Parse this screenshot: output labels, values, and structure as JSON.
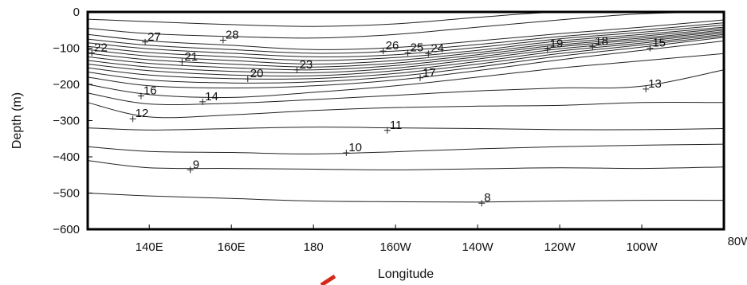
{
  "chart_data": {
    "type": "line",
    "chart_kind": "contour",
    "title": "",
    "xlabel": "Longitude",
    "ylabel": "Depth (m)",
    "xlim": [
      125,
      280
    ],
    "ylim": [
      -600,
      0
    ],
    "x_ticks": [
      {
        "value": 140,
        "label": "140E"
      },
      {
        "value": 160,
        "label": "160E"
      },
      {
        "value": 180,
        "label": "180"
      },
      {
        "value": 200,
        "label": "160W"
      },
      {
        "value": 220,
        "label": "140W"
      },
      {
        "value": 240,
        "label": "120W"
      },
      {
        "value": 260,
        "label": "100W"
      },
      {
        "value": 280,
        "label": "80W"
      }
    ],
    "y_ticks": [
      0,
      -100,
      -200,
      -300,
      -400,
      -500,
      -600
    ],
    "grid": false,
    "series": [
      {
        "level": 28,
        "x": [
          125,
          140,
          160,
          180,
          200,
          220,
          240,
          260,
          280
        ],
        "y": [
          -20,
          -27,
          -35,
          -40,
          -33,
          -15,
          0,
          0,
          0
        ]
      },
      {
        "level": 27,
        "x": [
          125,
          140,
          160,
          180,
          200,
          220,
          240,
          260,
          280
        ],
        "y": [
          -45,
          -60,
          -68,
          -72,
          -62,
          -42,
          -22,
          -5,
          0
        ]
      },
      {
        "level": 26,
        "x": [
          125,
          140,
          160,
          180,
          200,
          220,
          240,
          260,
          280
        ],
        "y": [
          -62,
          -80,
          -92,
          -104,
          -98,
          -80,
          -60,
          -42,
          -22
        ]
      },
      {
        "level": 25,
        "x": [
          125,
          140,
          160,
          180,
          200,
          220,
          240,
          260,
          280
        ],
        "y": [
          -75,
          -92,
          -104,
          -114,
          -108,
          -90,
          -68,
          -50,
          -30
        ]
      },
      {
        "level": 24,
        "x": [
          125,
          140,
          160,
          180,
          200,
          220,
          240,
          260,
          280
        ],
        "y": [
          -85,
          -102,
          -114,
          -124,
          -118,
          -98,
          -74,
          -56,
          -36
        ]
      },
      {
        "level": 23,
        "x": [
          125,
          140,
          160,
          180,
          200,
          220,
          240,
          260,
          280
        ],
        "y": [
          -95,
          -112,
          -124,
          -134,
          -126,
          -106,
          -80,
          -62,
          -42
        ]
      },
      {
        "level": 22,
        "x": [
          125,
          140,
          160,
          180,
          200,
          220,
          240,
          260,
          280
        ],
        "y": [
          -104,
          -122,
          -134,
          -144,
          -134,
          -112,
          -86,
          -67,
          -46
        ]
      },
      {
        "level": 21,
        "x": [
          125,
          140,
          160,
          180,
          200,
          220,
          240,
          260,
          280
        ],
        "y": [
          -114,
          -132,
          -144,
          -152,
          -141,
          -118,
          -91,
          -72,
          -50
        ]
      },
      {
        "level": 20,
        "x": [
          125,
          140,
          160,
          180,
          200,
          220,
          240,
          260,
          280
        ],
        "y": [
          -124,
          -142,
          -154,
          -160,
          -148,
          -124,
          -96,
          -76,
          -54
        ]
      },
      {
        "level": 19,
        "x": [
          125,
          140,
          160,
          180,
          200,
          220,
          240,
          260,
          280
        ],
        "y": [
          -134,
          -152,
          -164,
          -168,
          -155,
          -130,
          -102,
          -81,
          -58
        ]
      },
      {
        "level": 18,
        "x": [
          125,
          140,
          160,
          180,
          200,
          220,
          240,
          260,
          280
        ],
        "y": [
          -144,
          -162,
          -174,
          -176,
          -162,
          -137,
          -108,
          -86,
          -62
        ]
      },
      {
        "level": 17,
        "x": [
          125,
          140,
          160,
          180,
          200,
          220,
          240,
          260,
          280
        ],
        "y": [
          -154,
          -174,
          -184,
          -184,
          -170,
          -144,
          -115,
          -91,
          -66
        ]
      },
      {
        "level": 16,
        "x": [
          125,
          140,
          160,
          180,
          200,
          220,
          240,
          260,
          280
        ],
        "y": [
          -166,
          -188,
          -196,
          -193,
          -178,
          -152,
          -122,
          -97,
          -70
        ]
      },
      {
        "level": 15,
        "x": [
          125,
          140,
          160,
          180,
          200,
          220,
          240,
          260,
          280
        ],
        "y": [
          -180,
          -204,
          -210,
          -204,
          -188,
          -162,
          -132,
          -106,
          -80
        ]
      },
      {
        "level": 14,
        "x": [
          125,
          140,
          160,
          180,
          200,
          220,
          240,
          260,
          280
        ],
        "y": [
          -200,
          -228,
          -236,
          -222,
          -204,
          -180,
          -155,
          -135,
          -115
        ]
      },
      {
        "level": 13,
        "x": [
          125,
          140,
          160,
          180,
          200,
          220,
          240,
          260,
          280
        ],
        "y": [
          -224,
          -254,
          -252,
          -242,
          -230,
          -218,
          -210,
          -205,
          -160
        ]
      },
      {
        "level": 12,
        "x": [
          125,
          140,
          160,
          180,
          200,
          220,
          240,
          260,
          280
        ],
        "y": [
          -250,
          -290,
          -284,
          -272,
          -264,
          -260,
          -258,
          -250,
          -250
        ]
      },
      {
        "level": 11,
        "x": [
          125,
          140,
          160,
          180,
          200,
          220,
          240,
          260,
          280
        ],
        "y": [
          -320,
          -326,
          -322,
          -318,
          -320,
          -322,
          -325,
          -325,
          -322
        ]
      },
      {
        "level": 10,
        "x": [
          125,
          140,
          160,
          180,
          200,
          220,
          240,
          260,
          280
        ],
        "y": [
          -372,
          -385,
          -388,
          -392,
          -386,
          -378,
          -372,
          -368,
          -365
        ]
      },
      {
        "level": 9,
        "x": [
          125,
          140,
          160,
          180,
          200,
          220,
          240,
          260,
          280
        ],
        "y": [
          -410,
          -430,
          -432,
          -434,
          -436,
          -433,
          -430,
          -432,
          -428
        ]
      },
      {
        "level": 8,
        "x": [
          125,
          140,
          160,
          180,
          200,
          220,
          240,
          260,
          280
        ],
        "y": [
          -500,
          -508,
          -515,
          -522,
          -524,
          -525,
          -522,
          -520,
          -520
        ]
      }
    ],
    "contour_labels": [
      {
        "text": "28",
        "x": 158,
        "y": -78
      },
      {
        "text": "27",
        "x": 139,
        "y": -83
      },
      {
        "text": "22",
        "x": 126,
        "y": -113
      },
      {
        "text": "21",
        "x": 148,
        "y": -138
      },
      {
        "text": "26",
        "x": 197,
        "y": -108
      },
      {
        "text": "25",
        "x": 203,
        "y": -113
      },
      {
        "text": "24",
        "x": 208,
        "y": -115
      },
      {
        "text": "23",
        "x": 176,
        "y": -160
      },
      {
        "text": "20",
        "x": 164,
        "y": -185
      },
      {
        "text": "17",
        "x": 206,
        "y": -182
      },
      {
        "text": "19",
        "x": 237,
        "y": -102
      },
      {
        "text": "18",
        "x": 248,
        "y": -96
      },
      {
        "text": "15",
        "x": 262,
        "y": -100
      },
      {
        "text": "13",
        "x": 261,
        "y": -213
      },
      {
        "text": "16",
        "x": 138,
        "y": -232
      },
      {
        "text": "14",
        "x": 153,
        "y": -248
      },
      {
        "text": "12",
        "x": 136,
        "y": -295
      },
      {
        "text": "11",
        "x": 198,
        "y": -327
      },
      {
        "text": "10",
        "x": 188,
        "y": -389
      },
      {
        "text": "9",
        "x": 150,
        "y": -436
      },
      {
        "text": "8",
        "x": 221,
        "y": -528
      }
    ]
  }
}
